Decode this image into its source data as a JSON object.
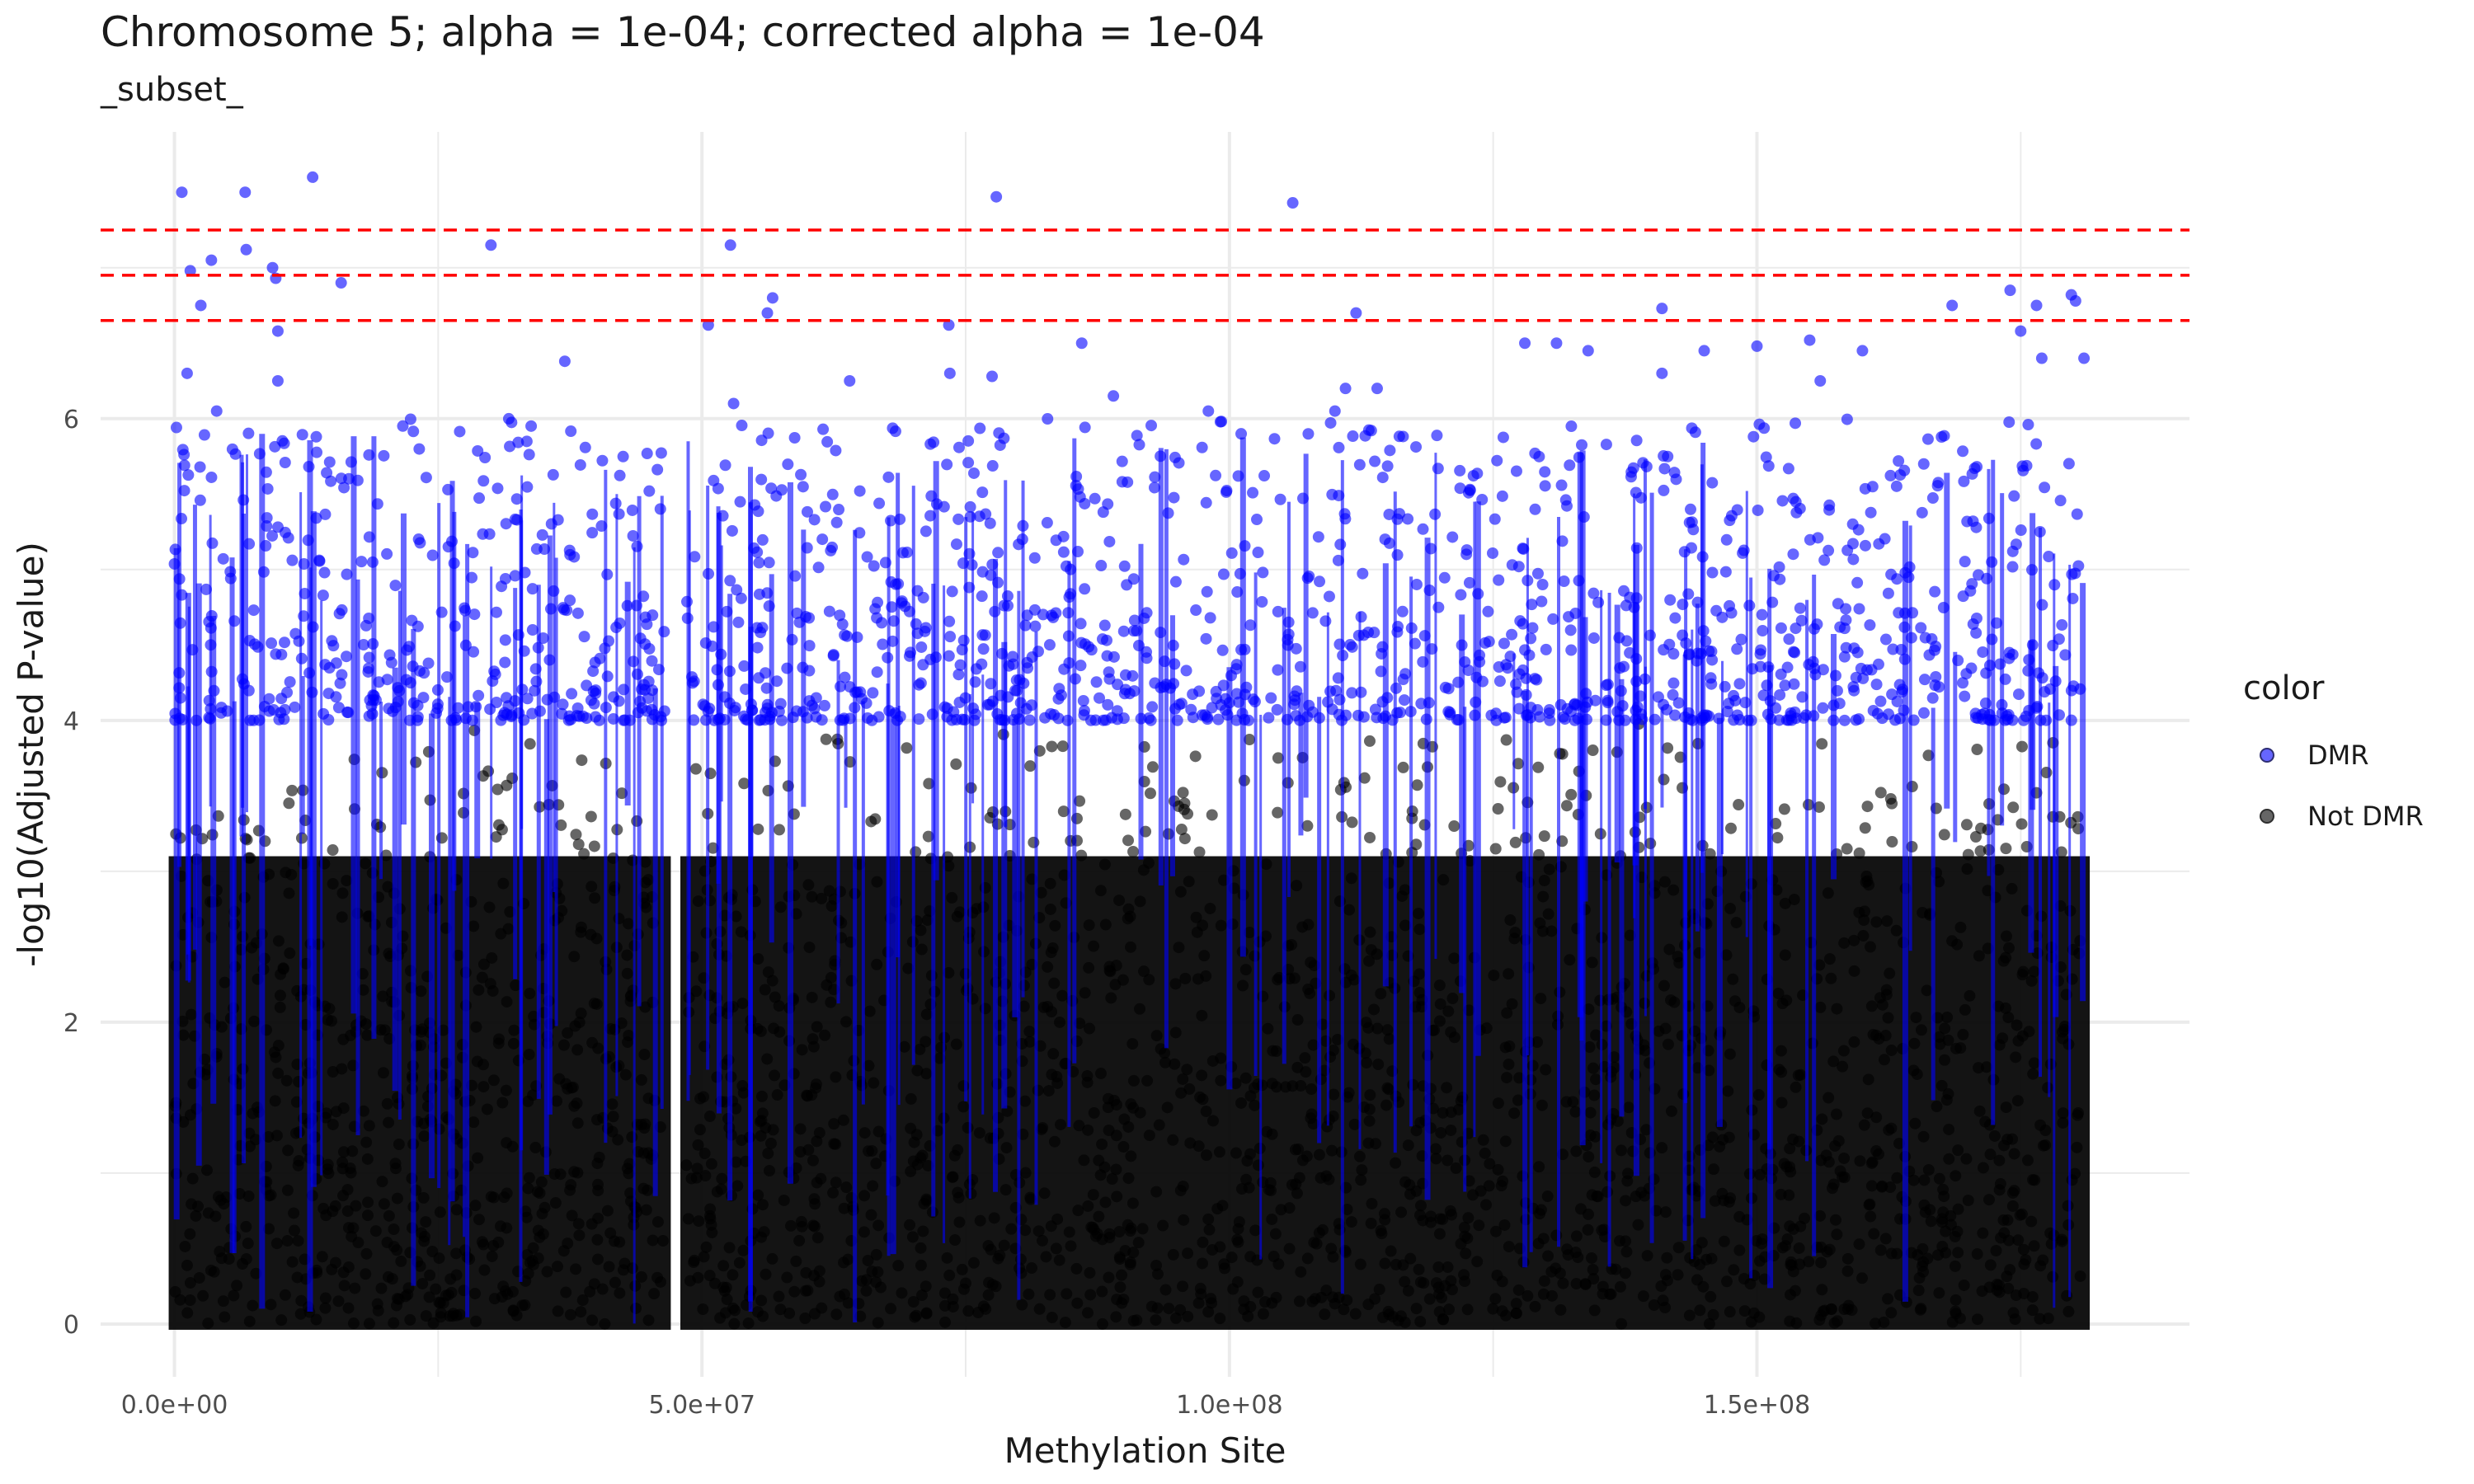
{
  "chart_data": {
    "type": "scatter",
    "title": "Chromosome 5; alpha = 1e-04; corrected alpha = 1e-04",
    "subtitle": "_subset_",
    "xlabel": "Methylation Site",
    "ylabel": "-log10(Adjusted P-value)",
    "xlim": [
      -7000000,
      191000000
    ],
    "ylim": [
      -0.35,
      7.9
    ],
    "x_ticks": [
      0,
      50000000,
      100000000,
      150000000
    ],
    "x_tick_labels": [
      "0.0e+00",
      "5.0e+07",
      "1.0e+08",
      "1.5e+08"
    ],
    "y_ticks": [
      0,
      2,
      4,
      6
    ],
    "y_tick_labels": [
      "0",
      "2",
      "4",
      "6"
    ],
    "grid": true,
    "threshold_lines": [
      6.65,
      6.95,
      7.25
    ],
    "threshold_color": "#ff0000",
    "dmr_threshold": 4,
    "legend": {
      "title": "color",
      "position": "right",
      "entries": [
        {
          "label": "DMR",
          "color": "#0000ff"
        },
        {
          "label": "Not DMR",
          "color": "#000000"
        }
      ]
    },
    "series": [
      {
        "name": "DMR",
        "color": "#0000ff",
        "peaks": [
          [
            700000,
            7.5
          ],
          [
            1500000,
            6.98
          ],
          [
            2500000,
            6.75
          ],
          [
            3500000,
            7.05
          ],
          [
            6700000,
            7.5
          ],
          [
            6800000,
            7.12
          ],
          [
            9300000,
            7.0
          ],
          [
            9600000,
            6.93
          ],
          [
            9800000,
            6.58
          ],
          [
            13100000,
            7.6
          ],
          [
            15800000,
            6.9
          ],
          [
            30000000,
            7.15
          ],
          [
            50600000,
            6.62
          ],
          [
            52700000,
            7.15
          ],
          [
            56200000,
            6.7
          ],
          [
            56700000,
            6.8
          ],
          [
            73400000,
            6.62
          ],
          [
            77900000,
            7.47
          ],
          [
            106000000,
            7.43
          ],
          [
            112000000,
            6.7
          ],
          [
            141000000,
            6.73
          ],
          [
            168500000,
            6.75
          ],
          [
            174000000,
            6.85
          ],
          [
            175000000,
            6.58
          ],
          [
            176500000,
            6.75
          ],
          [
            179800000,
            6.82
          ],
          [
            180200000,
            6.78
          ],
          [
            177000000,
            6.4
          ],
          [
            181000000,
            6.4
          ],
          [
            1200000,
            6.3
          ],
          [
            4000000,
            6.05
          ],
          [
            9800000,
            6.25
          ],
          [
            37000000,
            6.38
          ],
          [
            53000000,
            6.1
          ],
          [
            64000000,
            6.25
          ],
          [
            73500000,
            6.3
          ],
          [
            77500000,
            6.28
          ],
          [
            86000000,
            6.5
          ],
          [
            89000000,
            6.15
          ],
          [
            98000000,
            6.05
          ],
          [
            110000000,
            6.05
          ],
          [
            111000000,
            6.2
          ],
          [
            114000000,
            6.2
          ],
          [
            128000000,
            6.5
          ],
          [
            131000000,
            6.5
          ],
          [
            134000000,
            6.45
          ],
          [
            141000000,
            6.3
          ],
          [
            145000000,
            6.45
          ],
          [
            150000000,
            6.48
          ],
          [
            155000000,
            6.52
          ],
          [
            156000000,
            6.25
          ],
          [
            160000000,
            6.45
          ]
        ]
      },
      {
        "name": "Not DMR",
        "color": "#000000",
        "range": [
          0,
          4
        ]
      }
    ],
    "dense_regions": [
      {
        "x": [
          0,
          46500000
        ],
        "max": 6.0
      },
      {
        "x": [
          48500000,
          181000000
        ],
        "max": 6.0
      }
    ]
  }
}
